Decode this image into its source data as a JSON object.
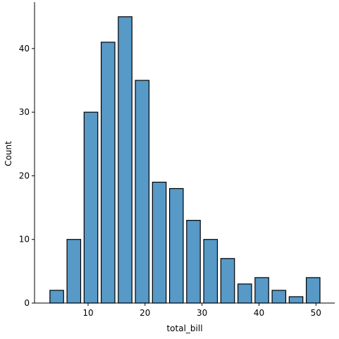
{
  "chart_data": {
    "type": "bar",
    "title": "",
    "xlabel": "total_bill",
    "ylabel": "Count",
    "xlim": [
      0.6,
      53.3
    ],
    "ylim": [
      0,
      47.3
    ],
    "bin_width": 3,
    "bar_fill_fraction": 0.8,
    "bins": [
      {
        "center": 4.5,
        "count": 2
      },
      {
        "center": 7.5,
        "count": 10
      },
      {
        "center": 10.5,
        "count": 30
      },
      {
        "center": 13.5,
        "count": 41
      },
      {
        "center": 16.5,
        "count": 45
      },
      {
        "center": 19.5,
        "count": 35
      },
      {
        "center": 22.5,
        "count": 19
      },
      {
        "center": 25.5,
        "count": 18
      },
      {
        "center": 28.5,
        "count": 13
      },
      {
        "center": 31.5,
        "count": 10
      },
      {
        "center": 34.5,
        "count": 7
      },
      {
        "center": 37.5,
        "count": 3
      },
      {
        "center": 40.5,
        "count": 4
      },
      {
        "center": 43.5,
        "count": 2
      },
      {
        "center": 46.5,
        "count": 1
      },
      {
        "center": 49.5,
        "count": 4
      }
    ],
    "x_ticks": [
      {
        "value": 10,
        "label": "10"
      },
      {
        "value": 20,
        "label": "20"
      },
      {
        "value": 30,
        "label": "30"
      },
      {
        "value": 40,
        "label": "40"
      },
      {
        "value": 50,
        "label": "50"
      }
    ],
    "y_ticks": [
      {
        "value": 0,
        "label": "0"
      },
      {
        "value": 10,
        "label": "10"
      },
      {
        "value": 20,
        "label": "20"
      },
      {
        "value": 30,
        "label": "30"
      },
      {
        "value": 40,
        "label": "40"
      }
    ],
    "grid": false,
    "spines": [
      "left",
      "bottom"
    ],
    "colors": {
      "bar_fill": "#5799c7",
      "bar_edge": "#000000",
      "axis": "#000000"
    }
  }
}
